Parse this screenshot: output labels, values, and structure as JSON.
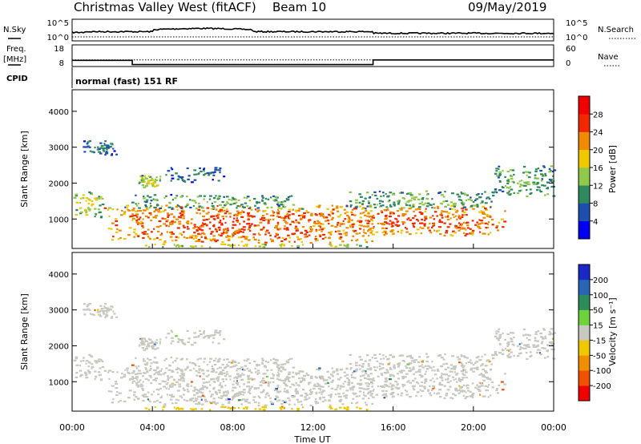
{
  "header": {
    "title": "Christmas Valley West (fitACF)",
    "beam": "Beam 10",
    "date": "09/May/2019"
  },
  "nsky_panel": {
    "left_label": "N.Sky",
    "left_ticks": [
      "10^5",
      "10^0"
    ],
    "right_label": "N.Search",
    "right_ticks": [
      "10^5",
      "10^0"
    ]
  },
  "freq_panel": {
    "left_label_line1": "Freq.",
    "left_label_line2": "[MHz]",
    "left_ticks": [
      "18",
      "8"
    ],
    "right_label": "Nave",
    "right_ticks": [
      "60",
      "0"
    ],
    "cpid_label": "CPID",
    "cpid_text": "normal (fast) 151 RF"
  },
  "power_panel": {
    "ylabel": "Slant Range [km]",
    "yticks": [
      "4000",
      "3000",
      "2000",
      "1000"
    ],
    "colorbar_label": "Power [dB]",
    "colorbar_ticks": [
      "28",
      "24",
      "20",
      "16",
      "12",
      "8",
      "4"
    ],
    "colors": [
      "#0000f0",
      "#1f4fae",
      "#2e8a5e",
      "#8fc84a",
      "#f0c800",
      "#f08a00",
      "#f02800",
      "#f00000"
    ]
  },
  "velocity_panel": {
    "ylabel": "Slant Range [km]",
    "yticks": [
      "4000",
      "3000",
      "2000",
      "1000"
    ],
    "colorbar_label": "Velocity [m s⁻¹]",
    "colorbar_ticks": [
      "200",
      "100",
      "50",
      "15",
      "-15",
      "-50",
      "-100",
      "-200"
    ],
    "colors": [
      "#1a28c8",
      "#2a64b4",
      "#2e8c5a",
      "#6ed23c",
      "#c8c8c0",
      "#f0c800",
      "#f09000",
      "#f05000",
      "#f00000"
    ]
  },
  "xaxis": {
    "label": "Time UT",
    "ticks": [
      "00:00",
      "04:00",
      "08:00",
      "12:00",
      "16:00",
      "20:00",
      "00:00"
    ]
  },
  "chart_data": {
    "type": "heatmap",
    "x_range_hours": [
      0,
      24
    ],
    "y_range_km": [
      180,
      4600
    ],
    "freq_steps": [
      {
        "start_h": 0,
        "end_h": 3.0,
        "mhz": 10.8
      },
      {
        "start_h": 3.0,
        "end_h": 15.0,
        "mhz": 8.6
      },
      {
        "start_h": 15.0,
        "end_h": 24,
        "mhz": 11.0
      }
    ],
    "nave_level": 18,
    "echo_regions": [
      {
        "x0": 0.0,
        "x1": 1.5,
        "y0": 1050,
        "y1": 1800,
        "power": 20,
        "velocity": 0
      },
      {
        "x0": 1.5,
        "x1": 15.0,
        "y0": 350,
        "y1": 1400,
        "power": 28,
        "velocity": 0
      },
      {
        "x0": 2.6,
        "x1": 11.5,
        "y0": 1300,
        "y1": 1700,
        "power": 16,
        "velocity": 5
      },
      {
        "x0": 3.3,
        "x1": 4.4,
        "y0": 1900,
        "y1": 2250,
        "power": 20,
        "velocity": 0
      },
      {
        "x0": 4.6,
        "x1": 7.6,
        "y0": 2050,
        "y1": 2450,
        "power": 12,
        "velocity": 0
      },
      {
        "x0": 0.4,
        "x1": 2.2,
        "y0": 2800,
        "y1": 3200,
        "power": 12,
        "velocity": 0
      },
      {
        "x0": 13.2,
        "x1": 21.7,
        "y0": 550,
        "y1": 1400,
        "power": 28,
        "velocity": 0
      },
      {
        "x0": 13.5,
        "x1": 21.0,
        "y0": 1300,
        "y1": 1800,
        "power": 16,
        "velocity": 5
      },
      {
        "x0": 20.8,
        "x1": 24.0,
        "y0": 1650,
        "y1": 2500,
        "power": 16,
        "velocity": 0
      },
      {
        "x0": 3.5,
        "x1": 15.0,
        "y0": 230,
        "y1": 330,
        "power": 20,
        "velocity": -30
      }
    ]
  }
}
